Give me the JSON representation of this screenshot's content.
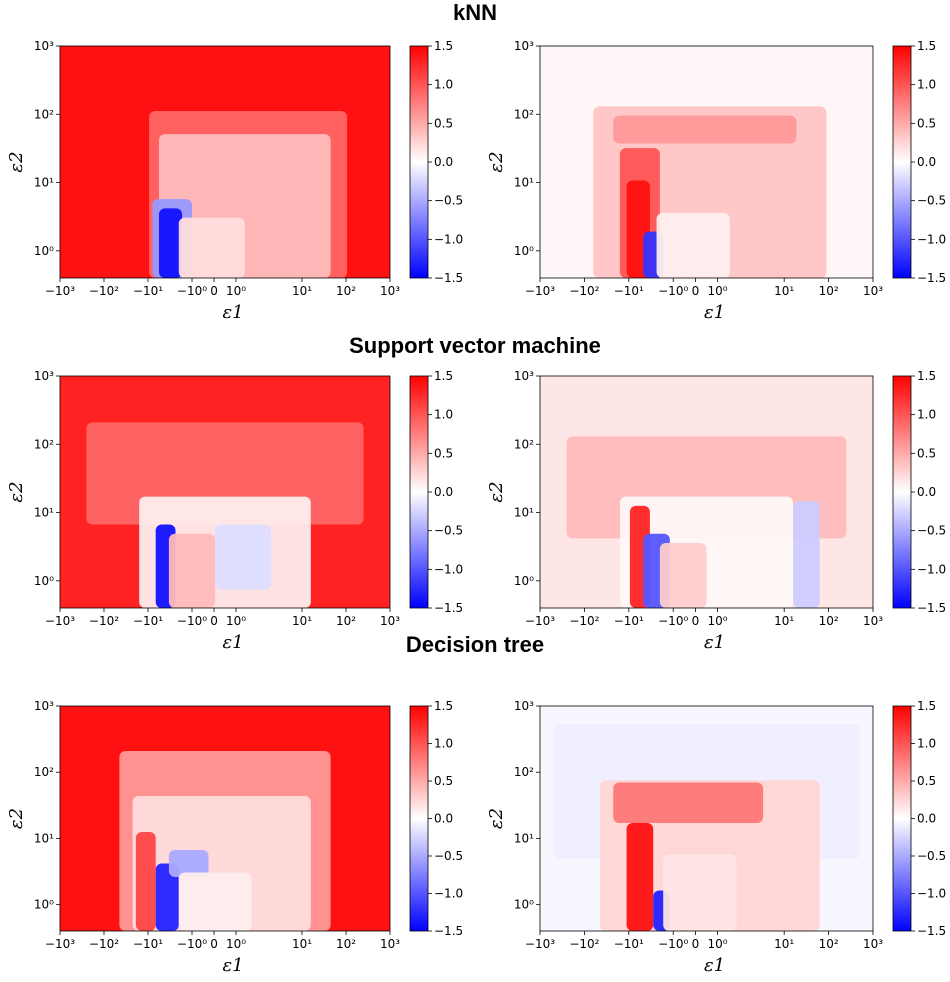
{
  "sections": [
    {
      "title": "kNN"
    },
    {
      "title": "Support vector machine"
    },
    {
      "title": "Decision tree"
    }
  ],
  "chart_data": [
    {
      "type": "heatmap",
      "section": "kNN",
      "position": "left",
      "xlabel": "ε1",
      "ylabel": "ε2",
      "xscale": "symlog",
      "yscale": "log",
      "xlim": [
        -1000,
        1000
      ],
      "ylim": [
        0.4,
        1000
      ],
      "x_ticks": [
        "−10³",
        "−10²",
        "−10¹",
        "−10⁰",
        "0",
        "10⁰",
        "10¹",
        "10²",
        "10³"
      ],
      "y_ticks": [
        "10⁰",
        "10¹",
        "10²",
        "10³"
      ],
      "colorbar": {
        "min": -1.5,
        "max": 1.5,
        "ticks": [
          "1.5",
          "1.0",
          "0.5",
          "0.0",
          "−0.5",
          "−1.0",
          "−1.5"
        ],
        "colormap": "bwr"
      },
      "background_value": 1.4
    },
    {
      "type": "heatmap",
      "section": "kNN",
      "position": "right",
      "xlabel": "ε1",
      "ylabel": "ε2",
      "xscale": "symlog",
      "yscale": "log",
      "xlim": [
        -1000,
        1000
      ],
      "ylim": [
        0.4,
        1000
      ],
      "x_ticks": [
        "−10³",
        "−10²",
        "−10¹",
        "−10⁰",
        "0",
        "10⁰",
        "10¹",
        "10²",
        "10³"
      ],
      "y_ticks": [
        "10⁰",
        "10¹",
        "10²",
        "10³"
      ],
      "colorbar": {
        "min": -1.5,
        "max": 1.5,
        "ticks": [
          "1.5",
          "1.0",
          "0.5",
          "0.0",
          "−0.5",
          "−1.0",
          "−1.5"
        ],
        "colormap": "bwr"
      },
      "background_value": 0.05
    },
    {
      "type": "heatmap",
      "section": "Support vector machine",
      "position": "left",
      "xlabel": "ε1",
      "ylabel": "ε2",
      "xscale": "symlog",
      "yscale": "log",
      "xlim": [
        -1000,
        1000
      ],
      "ylim": [
        0.4,
        1000
      ],
      "x_ticks": [
        "−10³",
        "−10²",
        "−10¹",
        "−10⁰",
        "0",
        "10⁰",
        "10¹",
        "10²",
        "10³"
      ],
      "y_ticks": [
        "10⁰",
        "10¹",
        "10²",
        "10³"
      ],
      "colorbar": {
        "min": -1.5,
        "max": 1.5,
        "ticks": [
          "1.5",
          "1.0",
          "0.5",
          "0.0",
          "−0.5",
          "−1.0",
          "−1.5"
        ],
        "colormap": "bwr"
      },
      "background_value": 1.3
    },
    {
      "type": "heatmap",
      "section": "Support vector machine",
      "position": "right",
      "xlabel": "ε1",
      "ylabel": "ε2",
      "xscale": "symlog",
      "yscale": "log",
      "xlim": [
        -1000,
        1000
      ],
      "ylim": [
        0.4,
        1000
      ],
      "x_ticks": [
        "−10³",
        "−10²",
        "−10¹",
        "−10⁰",
        "0",
        "10⁰",
        "10¹",
        "10²",
        "10³"
      ],
      "y_ticks": [
        "10⁰",
        "10¹",
        "10²",
        "10³"
      ],
      "colorbar": {
        "min": -1.5,
        "max": 1.5,
        "ticks": [
          "1.5",
          "1.0",
          "0.5",
          "0.0",
          "−0.5",
          "−1.0",
          "−1.5"
        ],
        "colormap": "bwr"
      },
      "background_value": 0.15
    },
    {
      "type": "heatmap",
      "section": "Decision tree",
      "position": "left",
      "xlabel": "ε1",
      "ylabel": "ε2",
      "xscale": "symlog",
      "yscale": "log",
      "xlim": [
        -1000,
        1000
      ],
      "ylim": [
        0.4,
        1000
      ],
      "x_ticks": [
        "−10³",
        "−10²",
        "−10¹",
        "−10⁰",
        "0",
        "10⁰",
        "10¹",
        "10²",
        "10³"
      ],
      "y_ticks": [
        "10⁰",
        "10¹",
        "10²",
        "10³"
      ],
      "colorbar": {
        "min": -1.5,
        "max": 1.5,
        "ticks": [
          "1.5",
          "1.0",
          "0.5",
          "0.0",
          "−0.5",
          "−1.0",
          "−1.5"
        ],
        "colormap": "bwr"
      },
      "background_value": 1.4
    },
    {
      "type": "heatmap",
      "section": "Decision tree",
      "position": "right",
      "xlabel": "ε1",
      "ylabel": "ε2",
      "xscale": "symlog",
      "yscale": "log",
      "xlim": [
        -1000,
        1000
      ],
      "ylim": [
        0.4,
        1000
      ],
      "x_ticks": [
        "−10³",
        "−10²",
        "−10¹",
        "−10⁰",
        "0",
        "10⁰",
        "10¹",
        "10²",
        "10³"
      ],
      "y_ticks": [
        "10⁰",
        "10¹",
        "10²",
        "10³"
      ],
      "colorbar": {
        "min": -1.5,
        "max": 1.5,
        "ticks": [
          "1.5",
          "1.0",
          "0.5",
          "0.0",
          "−0.5",
          "−1.0",
          "−1.5"
        ],
        "colormap": "bwr"
      },
      "background_value": -0.05
    }
  ]
}
